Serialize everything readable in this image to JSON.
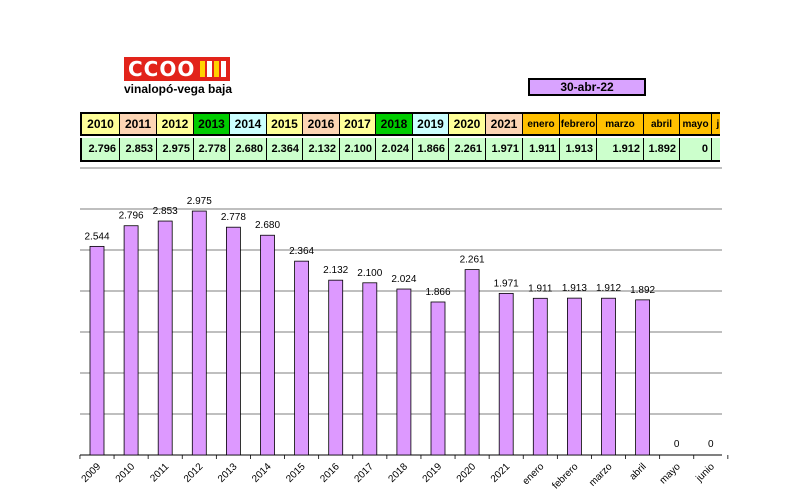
{
  "header": {
    "logo_text": "CCOO",
    "organization": "vinalopó-vega baja",
    "date": "30-abr-22"
  },
  "colors": {
    "bar_fill": "#dd99ff",
    "logo_red": "#e2231a",
    "date_box": "#d9a3ff",
    "value_row": "#ccffcc",
    "month_header": "#ffc000"
  },
  "table": {
    "headers": [
      {
        "label": "2010",
        "bg": "#ffff99"
      },
      {
        "label": "2011",
        "bg": "#fcd5b4"
      },
      {
        "label": "2012",
        "bg": "#ffff99"
      },
      {
        "label": "2013",
        "bg": "#00cc00"
      },
      {
        "label": "2014",
        "bg": "#ccffff"
      },
      {
        "label": "2015",
        "bg": "#ffff99"
      },
      {
        "label": "2016",
        "bg": "#fcd5b4"
      },
      {
        "label": "2017",
        "bg": "#ffff99"
      },
      {
        "label": "2018",
        "bg": "#00cc00"
      },
      {
        "label": "2019",
        "bg": "#ccffff"
      },
      {
        "label": "2020",
        "bg": "#ffff99"
      },
      {
        "label": "2021",
        "bg": "#fcd5b4"
      },
      {
        "label": "enero",
        "bg": "#ffc000"
      },
      {
        "label": "febrero",
        "bg": "#ffc000"
      },
      {
        "label": "marzo",
        "bg": "#ffc000"
      },
      {
        "label": "abril",
        "bg": "#ffc000"
      },
      {
        "label": "mayo",
        "bg": "#ffc000"
      },
      {
        "label": "junio",
        "bg": "#ffc000"
      }
    ],
    "values": [
      "2.796",
      "2.853",
      "2.975",
      "2.778",
      "2.680",
      "2.364",
      "2.132",
      "2.100",
      "2.024",
      "1.866",
      "2.261",
      "1.971",
      "1.911",
      "1.913",
      "1.912",
      "1.892",
      "0",
      ""
    ]
  },
  "chart_data": {
    "type": "bar",
    "categories": [
      "2009",
      "2010",
      "2011",
      "2012",
      "2013",
      "2014",
      "2015",
      "2016",
      "2017",
      "2018",
      "2019",
      "2020",
      "2021",
      "enero",
      "febrero",
      "marzo",
      "abril",
      "mayo",
      "junio"
    ],
    "values": [
      2544,
      2796,
      2853,
      2975,
      2778,
      2680,
      2364,
      2132,
      2100,
      2024,
      1866,
      2261,
      1971,
      1911,
      1913,
      1912,
      1892,
      0,
      0
    ],
    "data_labels": [
      "2.544",
      "2.796",
      "2.853",
      "2.975",
      "2.778",
      "2.680",
      "2.364",
      "2.132",
      "2.100",
      "2.024",
      "1.866",
      "2.261",
      "1.971",
      "1.911",
      "1.913",
      "1.912",
      "1.892",
      "0",
      "0"
    ],
    "ylim": [
      0,
      3500
    ],
    "grid": true,
    "title": "",
    "xlabel": "",
    "ylabel": ""
  }
}
